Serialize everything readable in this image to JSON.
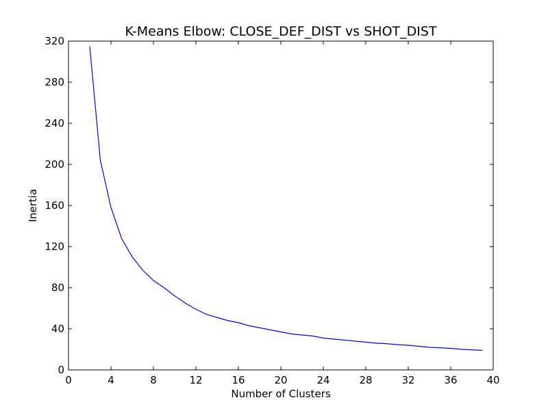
{
  "chart_data": {
    "type": "line",
    "title": "K-Means Elbow: CLOSE_DEF_DIST vs SHOT_DIST",
    "xlabel": "Number of Clusters",
    "ylabel": "Inertia",
    "xlim": [
      0,
      40
    ],
    "ylim": [
      0,
      320
    ],
    "xticks": [
      0,
      4,
      8,
      12,
      16,
      20,
      24,
      28,
      32,
      36,
      40
    ],
    "yticks": [
      0,
      40,
      80,
      120,
      160,
      200,
      240,
      280,
      320
    ],
    "grid": false,
    "line_color": "#0000ff",
    "x": [
      2,
      3,
      4,
      5,
      6,
      7,
      8,
      9,
      10,
      11,
      12,
      13,
      14,
      15,
      16,
      17,
      18,
      19,
      20,
      21,
      22,
      23,
      24,
      25,
      26,
      27,
      28,
      29,
      30,
      31,
      32,
      33,
      34,
      35,
      36,
      37,
      38,
      39
    ],
    "y": [
      315,
      204,
      158,
      128,
      110,
      97,
      87,
      80,
      72,
      65,
      59,
      54,
      51,
      48,
      46,
      43,
      41,
      39,
      37,
      35,
      34,
      33,
      31,
      30,
      29,
      28,
      27,
      26,
      25.5,
      24.5,
      24,
      23,
      22,
      21.5,
      21,
      20,
      19.5,
      19
    ]
  }
}
